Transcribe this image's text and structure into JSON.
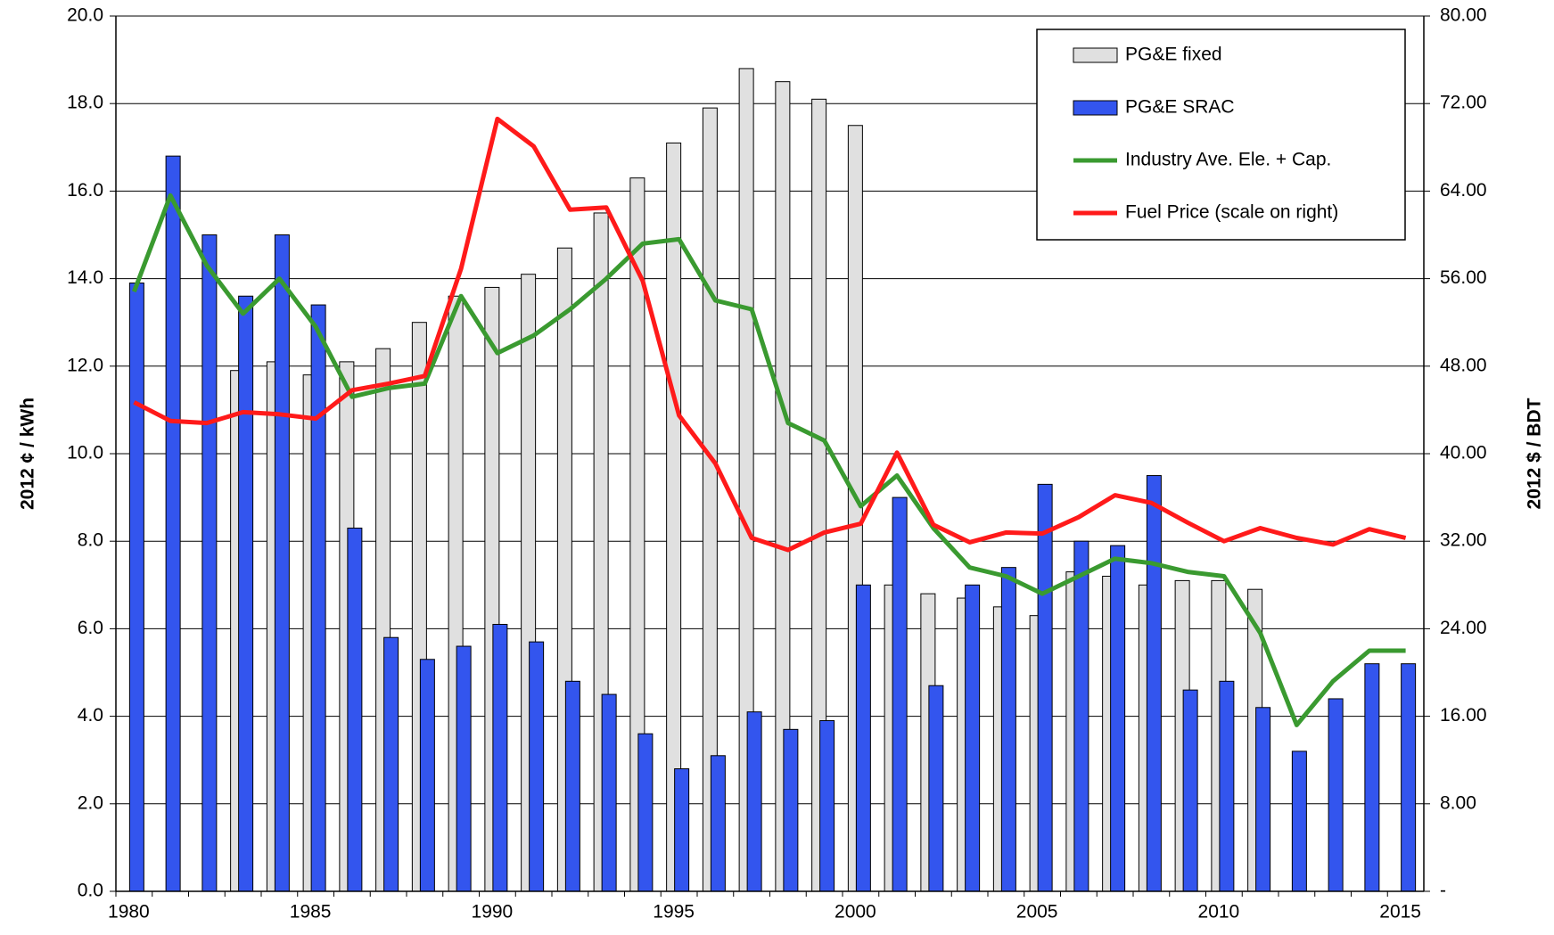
{
  "chart_data": {
    "type": "bar-line",
    "ylabel": "2012 ¢ / kWh",
    "y2label": "2012 $ / BDT",
    "categories": [
      "1980",
      null,
      null,
      null,
      null,
      "1985",
      null,
      null,
      null,
      null,
      "1990",
      null,
      null,
      null,
      null,
      "1995",
      null,
      null,
      null,
      null,
      "2000",
      null,
      null,
      null,
      null,
      "2005",
      null,
      null,
      null,
      null,
      "2010",
      null,
      null,
      null,
      null,
      "2015"
    ],
    "series": [
      {
        "name": "PG&E fixed",
        "kind": "bar",
        "color": "#e0e0e0",
        "values": [
          null,
          null,
          null,
          11.9,
          12.1,
          11.8,
          12.1,
          12.4,
          13.0,
          13.6,
          13.8,
          14.1,
          14.7,
          15.5,
          16.3,
          17.1,
          17.9,
          18.8,
          18.5,
          18.1,
          17.5,
          7.0,
          6.8,
          6.7,
          6.5,
          6.3,
          7.3,
          7.2,
          7.0,
          7.1,
          7.1,
          6.9,
          null,
          null,
          null,
          null
        ]
      },
      {
        "name": "PG&E SRAC",
        "kind": "bar",
        "color": "#3355ee",
        "values": [
          13.9,
          16.8,
          15.0,
          13.6,
          15.0,
          13.4,
          8.3,
          5.8,
          5.3,
          5.6,
          6.1,
          5.7,
          4.8,
          4.5,
          3.6,
          2.8,
          3.1,
          4.1,
          3.7,
          3.9,
          7.0,
          9.0,
          4.7,
          7.0,
          7.4,
          9.3,
          8.0,
          7.9,
          9.5,
          4.6,
          4.8,
          4.2,
          3.2,
          4.4,
          5.2,
          5.2
        ]
      },
      {
        "name": "Industry Ave. Ele. + Cap.",
        "kind": "line",
        "color": "#3a9a30",
        "values": [
          13.7,
          15.9,
          14.3,
          13.2,
          14.0,
          12.9,
          11.3,
          11.5,
          11.6,
          13.6,
          12.3,
          12.7,
          13.3,
          14.0,
          14.8,
          14.9,
          13.5,
          13.3,
          10.7,
          10.3,
          8.8,
          9.5,
          8.3,
          7.4,
          7.2,
          6.8,
          7.2,
          7.6,
          7.5,
          7.3,
          7.2,
          5.9,
          3.8,
          4.8,
          5.5,
          5.5
        ]
      },
      {
        "name": "Fuel Price (scale on right)",
        "kind": "line",
        "axis": "y2",
        "color": "#ff1a1a",
        "values": [
          44.7,
          43.0,
          42.8,
          43.8,
          43.6,
          43.2,
          45.8,
          46.4,
          47.1,
          56.9,
          70.6,
          68.1,
          62.3,
          62.5,
          55.8,
          43.5,
          39.1,
          32.3,
          31.2,
          32.8,
          33.6,
          40.1,
          33.5,
          31.9,
          32.8,
          32.7,
          34.2,
          36.2,
          35.5,
          33.7,
          32.0,
          33.2,
          32.3,
          31.7,
          33.1,
          32.3
        ]
      }
    ],
    "ylim": [
      0,
      20
    ],
    "yticks": [
      {
        "value": 0,
        "label": "0.0"
      },
      {
        "value": 2,
        "label": "2.0"
      },
      {
        "value": 4,
        "label": "4.0"
      },
      {
        "value": 6,
        "label": "6.0"
      },
      {
        "value": 8,
        "label": "8.0"
      },
      {
        "value": 10,
        "label": "10.0"
      },
      {
        "value": 12,
        "label": "12.0"
      },
      {
        "value": 14,
        "label": "14.0"
      },
      {
        "value": 16,
        "label": "16.0"
      },
      {
        "value": 18,
        "label": "18.0"
      },
      {
        "value": 20,
        "label": "20.0"
      }
    ],
    "y2lim": [
      0,
      80
    ],
    "y2ticks": [
      {
        "value": 0,
        "label": "-"
      },
      {
        "value": 8,
        "label": "8.00"
      },
      {
        "value": 16,
        "label": "16.00"
      },
      {
        "value": 24,
        "label": "24.00"
      },
      {
        "value": 32,
        "label": "32.00"
      },
      {
        "value": 40,
        "label": "40.00"
      },
      {
        "value": 48,
        "label": "48.00"
      },
      {
        "value": 56,
        "label": "56.00"
      },
      {
        "value": 64,
        "label": "64.00"
      },
      {
        "value": 72,
        "label": "72.00"
      },
      {
        "value": 80,
        "label": "80.00"
      }
    ],
    "grid": true,
    "legend": "upper right"
  }
}
